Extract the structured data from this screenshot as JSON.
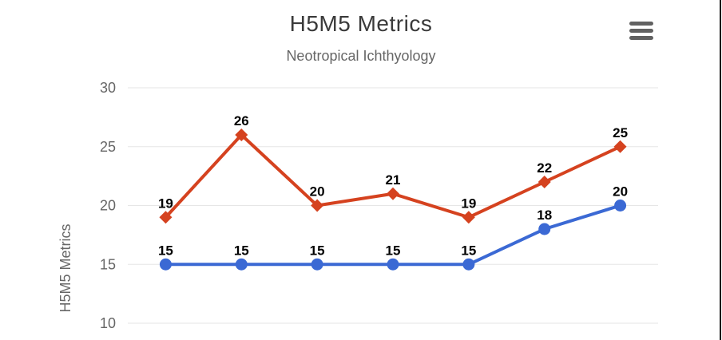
{
  "header": {
    "title": "H5M5 Metrics",
    "subtitle": "Neotropical Ichthyology",
    "menu_icon": "hamburger-menu-icon"
  },
  "chart_data": {
    "type": "line",
    "title": "H5M5 Metrics",
    "subtitle": "Neotropical Ichthyology",
    "xlabel": "",
    "ylabel": "H5M5 Metrics",
    "ylim": [
      10,
      30
    ],
    "yticks": [
      30,
      25,
      20,
      15,
      10
    ],
    "grid": true,
    "legend_position": "none",
    "data_labels": true,
    "series": [
      {
        "name": "red-series",
        "color": "#d5421f",
        "marker": "diamond",
        "values": [
          19,
          26,
          20,
          21,
          19,
          22,
          25
        ]
      },
      {
        "name": "blue-series",
        "color": "#3b69d4",
        "marker": "circle",
        "values": [
          15,
          15,
          15,
          15,
          15,
          18,
          20
        ]
      }
    ]
  },
  "colors": {
    "gridline": "#e6e6e6",
    "tick_label": "#666666",
    "axis_title": "#666666",
    "data_label": "#000000",
    "title": "#3a3a3a",
    "subtitle": "#666666",
    "menu_icon": "#616161",
    "right_edge": "#1a1a1a"
  }
}
